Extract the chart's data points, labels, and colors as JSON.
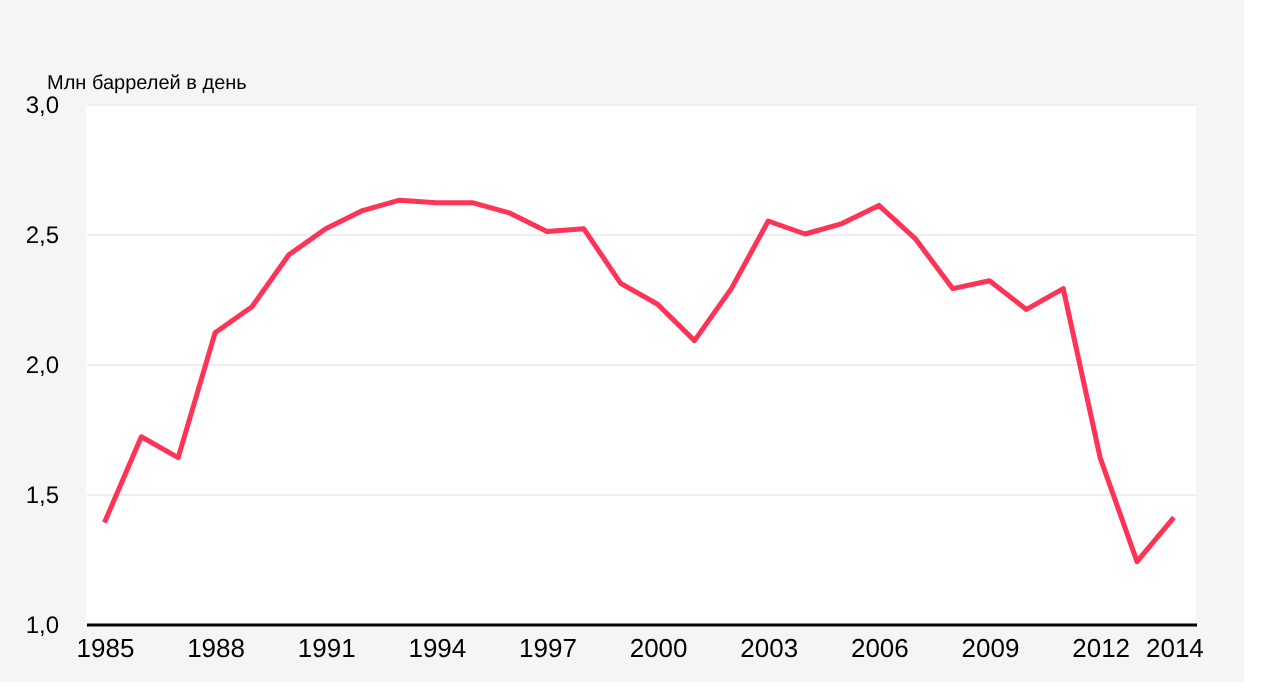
{
  "chart_data": {
    "type": "line",
    "ylabel": "Млн баррелей в день",
    "x": [
      1985,
      1986,
      1987,
      1988,
      1989,
      1990,
      1991,
      1992,
      1993,
      1994,
      1995,
      1996,
      1997,
      1998,
      1999,
      2000,
      2001,
      2002,
      2003,
      2004,
      2005,
      2006,
      2007,
      2008,
      2009,
      2010,
      2011,
      2012,
      2013,
      2014
    ],
    "series": [
      {
        "color": "#ff3355",
        "values": [
          1.39,
          1.72,
          1.64,
          2.12,
          2.22,
          2.42,
          2.52,
          2.59,
          2.63,
          2.62,
          2.62,
          2.58,
          2.51,
          2.52,
          2.31,
          2.23,
          2.09,
          2.29,
          2.55,
          2.5,
          2.54,
          2.61,
          2.48,
          2.29,
          2.32,
          2.21,
          2.29,
          1.64,
          1.24,
          1.41
        ]
      }
    ],
    "xlim": [
      1984.5,
      2014.6
    ],
    "xticks": [
      1985,
      1988,
      1991,
      1994,
      1997,
      2000,
      2003,
      2006,
      2009,
      2012,
      2014
    ],
    "ylim": [
      1.0,
      3.0
    ],
    "yticks": [
      {
        "value": 1.0,
        "label": "1,0"
      },
      {
        "value": 1.5,
        "label": "1,5"
      },
      {
        "value": 2.0,
        "label": "2,0"
      },
      {
        "value": 2.5,
        "label": "2,5"
      },
      {
        "value": 3.0,
        "label": "3,0"
      }
    ],
    "grid": "y",
    "marker": "none",
    "line_style": "solid"
  }
}
